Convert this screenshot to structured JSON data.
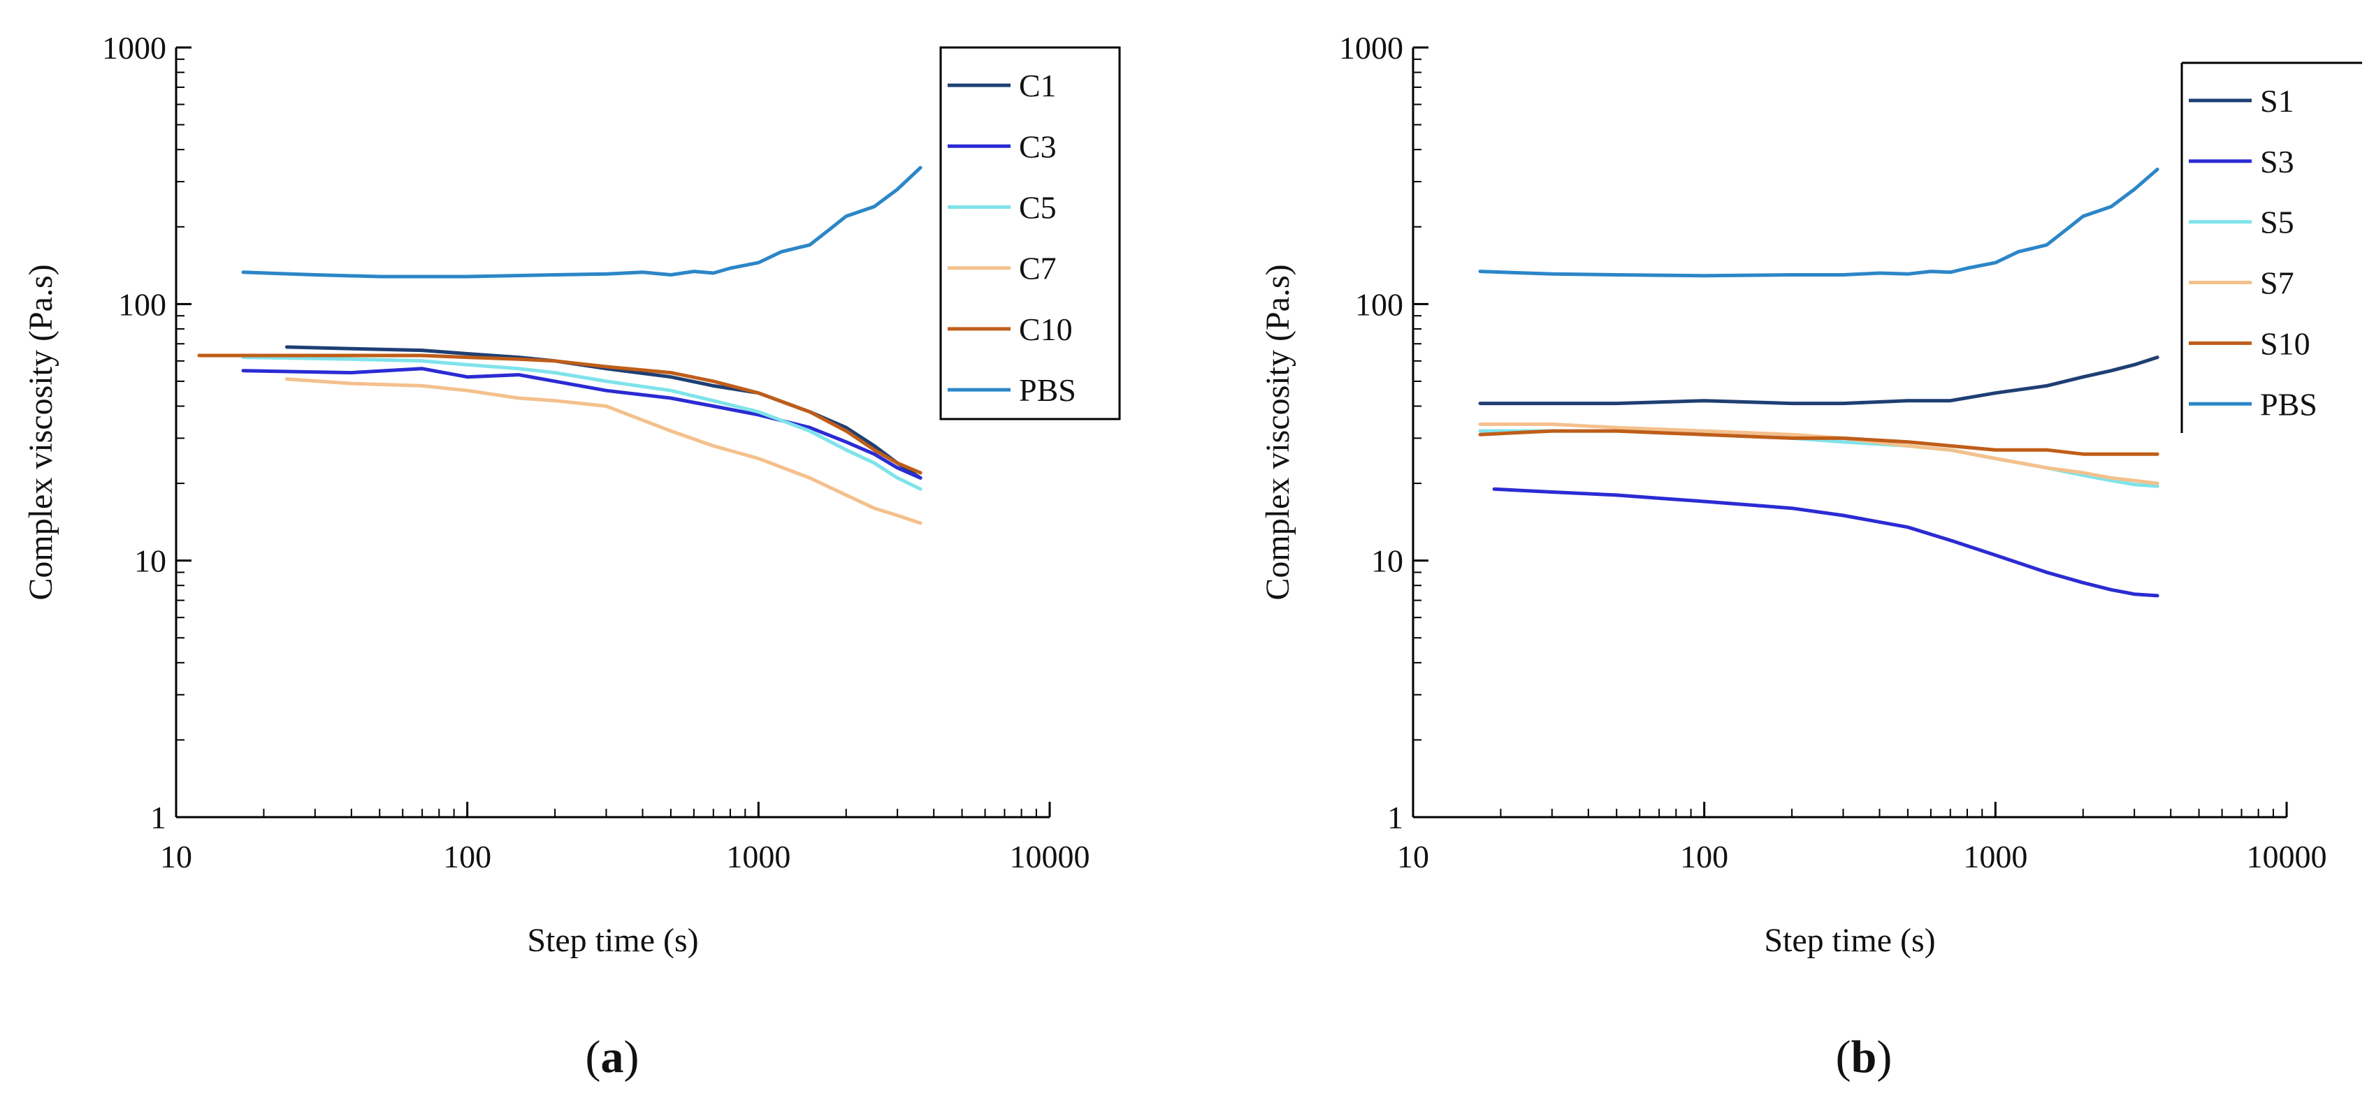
{
  "chart_data": [
    {
      "type": "line",
      "panel_label": "a",
      "xlabel": "Step time (s)",
      "ylabel": "Complex viscosity (Pa.s)",
      "xscale": "log",
      "yscale": "log",
      "xlim": [
        10,
        10000
      ],
      "ylim": [
        1,
        1000
      ],
      "xticks": [
        "10",
        "100",
        "1000",
        "10000"
      ],
      "yticks": [
        "1",
        "10",
        "100",
        "1000"
      ],
      "legend_position": "top-right",
      "series": [
        {
          "name": "C1",
          "color": "#1f3f73",
          "x": [
            24,
            40,
            70,
            100,
            150,
            200,
            300,
            500,
            700,
            1000,
            1500,
            2000,
            2500,
            3000,
            3600
          ],
          "y": [
            68,
            67,
            66,
            64,
            62,
            60,
            56,
            52,
            48,
            45,
            38,
            33,
            28,
            24,
            21
          ]
        },
        {
          "name": "C3",
          "color": "#2b2bd4",
          "x": [
            17,
            40,
            70,
            100,
            150,
            200,
            300,
            500,
            700,
            1000,
            1500,
            2000,
            2500,
            3000,
            3600
          ],
          "y": [
            55,
            54,
            56,
            52,
            53,
            50,
            46,
            43,
            40,
            37,
            33,
            29,
            26,
            23,
            21
          ]
        },
        {
          "name": "C5",
          "color": "#7fe3ea",
          "x": [
            17,
            40,
            70,
            100,
            150,
            200,
            300,
            500,
            700,
            1000,
            1500,
            2000,
            2500,
            3000,
            3600
          ],
          "y": [
            62,
            61,
            60,
            58,
            56,
            54,
            50,
            46,
            42,
            38,
            32,
            27,
            24,
            21,
            19
          ]
        },
        {
          "name": "C7",
          "color": "#f4c08c",
          "x": [
            24,
            40,
            70,
            100,
            150,
            200,
            300,
            500,
            700,
            1000,
            1500,
            2000,
            2500,
            3000,
            3600
          ],
          "y": [
            51,
            49,
            48,
            46,
            43,
            42,
            40,
            32,
            28,
            25,
            21,
            18,
            16,
            15,
            14
          ]
        },
        {
          "name": "C10",
          "color": "#bf5d18",
          "x": [
            12,
            30,
            70,
            100,
            150,
            200,
            300,
            500,
            700,
            1000,
            1500,
            2000,
            2500,
            3000,
            3600
          ],
          "y": [
            63,
            63,
            63,
            62,
            61,
            60,
            57,
            54,
            50,
            45,
            38,
            32,
            27,
            24,
            22
          ]
        },
        {
          "name": "PBS",
          "color": "#2c86c8",
          "x": [
            17,
            30,
            50,
            100,
            200,
            300,
            400,
            500,
            600,
            700,
            800,
            1000,
            1200,
            1500,
            1800,
            2000,
            2500,
            3000,
            3600
          ],
          "y": [
            133,
            130,
            128,
            128,
            130,
            131,
            133,
            130,
            134,
            132,
            138,
            145,
            160,
            170,
            200,
            220,
            240,
            280,
            340
          ]
        }
      ]
    },
    {
      "type": "line",
      "panel_label": "b",
      "xlabel": "Step time (s)",
      "ylabel": "Complex viscosity (Pa.s)",
      "xscale": "log",
      "yscale": "log",
      "xlim": [
        10,
        10000
      ],
      "ylim": [
        1,
        1000
      ],
      "xticks": [
        "10",
        "100",
        "1000",
        "10000"
      ],
      "yticks": [
        "1",
        "10",
        "100",
        "1000"
      ],
      "legend_position": "top-right",
      "series": [
        {
          "name": "S1",
          "color": "#1f3f73",
          "x": [
            17,
            50,
            100,
            200,
            300,
            500,
            700,
            1000,
            1500,
            2000,
            2500,
            3000,
            3600
          ],
          "y": [
            41,
            41,
            42,
            41,
            41,
            42,
            42,
            45,
            48,
            52,
            55,
            58,
            62
          ]
        },
        {
          "name": "S3",
          "color": "#2b2bd4",
          "x": [
            19,
            30,
            50,
            70,
            100,
            200,
            300,
            500,
            700,
            1000,
            1500,
            2000,
            2500,
            3000,
            3600
          ],
          "y": [
            19,
            18.5,
            18,
            17.5,
            17,
            16,
            15,
            13.5,
            12,
            10.5,
            9,
            8.2,
            7.7,
            7.4,
            7.3
          ]
        },
        {
          "name": "S5",
          "color": "#7fe3ea",
          "x": [
            17,
            50,
            100,
            200,
            300,
            500,
            700,
            1000,
            1500,
            2000,
            2500,
            3000,
            3600
          ],
          "y": [
            32,
            32,
            31,
            30,
            29,
            28,
            27,
            25,
            23,
            21.5,
            20.5,
            19.8,
            19.5
          ]
        },
        {
          "name": "S7",
          "color": "#f4c08c",
          "x": [
            17,
            30,
            50,
            100,
            200,
            300,
            500,
            700,
            1000,
            1500,
            2000,
            2500,
            3000,
            3600
          ],
          "y": [
            34,
            34,
            33,
            32,
            31,
            30,
            28,
            27,
            25,
            23,
            22,
            21,
            20.5,
            20
          ]
        },
        {
          "name": "S10",
          "color": "#bf5d18",
          "x": [
            17,
            30,
            50,
            100,
            200,
            300,
            500,
            700,
            1000,
            1500,
            2000,
            2500,
            3000,
            3600
          ],
          "y": [
            31,
            32,
            32,
            31,
            30,
            30,
            29,
            28,
            27,
            27,
            26,
            26,
            26,
            26
          ]
        },
        {
          "name": "PBS",
          "color": "#2c86c8",
          "x": [
            17,
            30,
            50,
            100,
            200,
            300,
            400,
            500,
            600,
            700,
            800,
            1000,
            1200,
            1500,
            1800,
            2000,
            2500,
            3000,
            3600
          ],
          "y": [
            134,
            131,
            130,
            129,
            130,
            130,
            132,
            131,
            134,
            133,
            138,
            145,
            160,
            170,
            200,
            220,
            240,
            280,
            335
          ]
        }
      ]
    }
  ]
}
